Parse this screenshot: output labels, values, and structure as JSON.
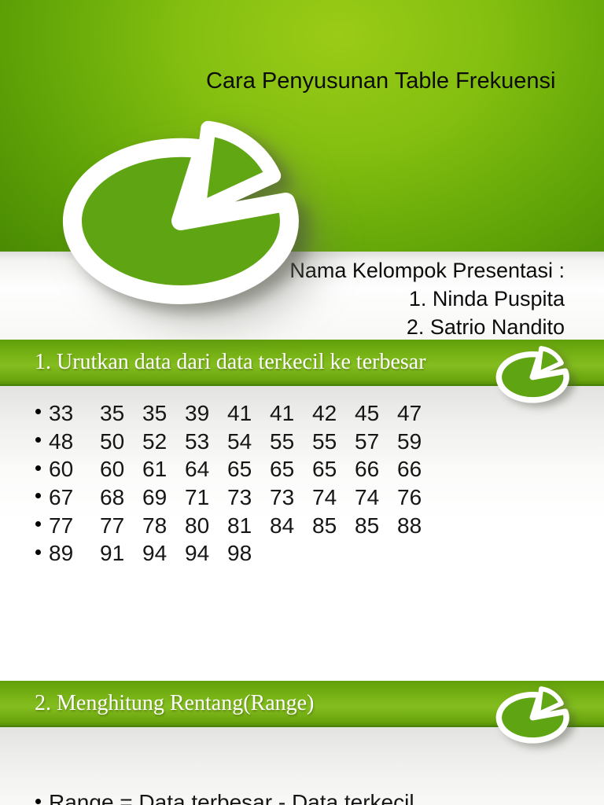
{
  "slide1": {
    "title": "Cara Penyusunan Table Frekuensi",
    "names_header": "Nama Kelompok Presentasi :",
    "members": [
      "1. Ninda Puspita",
      "2. Satrio Nandito"
    ]
  },
  "slide2": {
    "heading": "1. Urutkan data dari data terkecil ke terbesar",
    "rows": [
      [
        "33",
        "35",
        "35",
        "39",
        "41",
        "41",
        "42",
        "45",
        "47"
      ],
      [
        "48",
        "50",
        "52",
        "53",
        "54",
        "55",
        "55",
        "57",
        "59"
      ],
      [
        "60",
        "60",
        "61",
        "64",
        "65",
        "65",
        "65",
        "66",
        "66"
      ],
      [
        "67",
        "68",
        "69",
        "71",
        "73",
        "73",
        "74",
        "74",
        "76"
      ],
      [
        "77",
        "77",
        "78",
        "80",
        "81",
        "84",
        "85",
        "85",
        "88"
      ],
      [
        "89",
        "91",
        "94",
        "94",
        "98"
      ]
    ]
  },
  "slide3": {
    "heading": "2. Menghitung Rentang(Range)",
    "bullet_text": "Range = Data terbesar - Data terkecil"
  },
  "icons": {
    "logo": "pie-chart-icon",
    "bullet": "dot-bullet-icon"
  },
  "colors": {
    "green_bright": "#93c60f",
    "green_dark": "#4a8b03",
    "banner_green": "#7ab517",
    "banner_border": "#47810a",
    "logo_green": "#5fa513",
    "text": "#111111"
  }
}
